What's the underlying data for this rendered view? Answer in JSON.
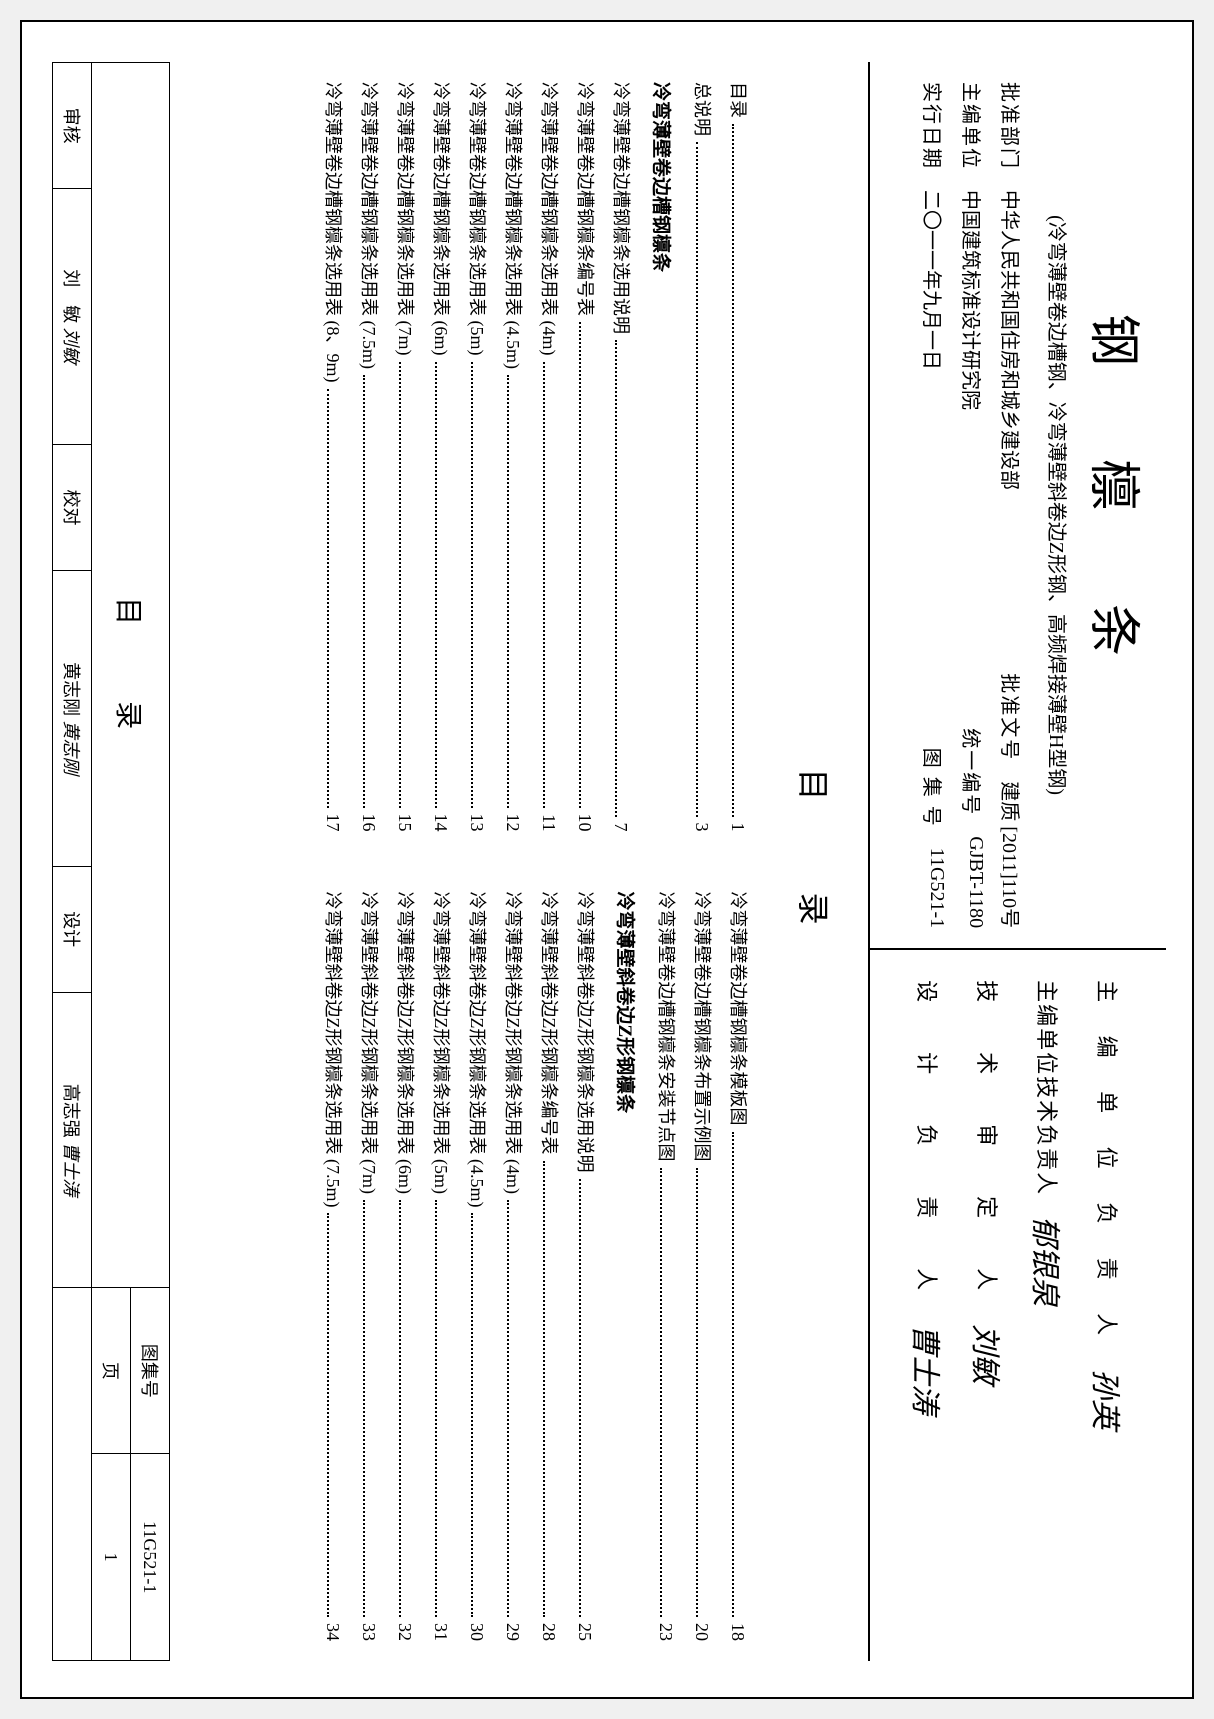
{
  "title_block": {
    "main_title": "钢  檩  条",
    "subtitle": "(冷弯薄壁卷边槽钢、冷弯薄壁斜卷边Z形钢、高频焊接薄壁H型钢)",
    "lines": [
      {
        "label": "批准部门",
        "value1": "中华人民共和国住房和城乡建设部",
        "label2": "批准文号",
        "value2": "建质 [2011]110号"
      },
      {
        "label": "主编单位",
        "value1": "中国建筑标准设计研究院",
        "label2": "统一编号",
        "value2": "GJBT-1180"
      },
      {
        "label": "实行日期",
        "value1": "二〇一一年九月一日",
        "label2": "图 集 号",
        "value2": "11G521-1"
      }
    ]
  },
  "signatures": [
    {
      "label": "主 编 单 位 负 责 人",
      "label_class": "sig-label",
      "name": "孙英"
    },
    {
      "label": "主编单位技术负责人",
      "label_class": "sig-label-tight",
      "name": "郁银泉"
    },
    {
      "label": "技　术　审　定　人",
      "label_class": "sig-label",
      "name": "刘敏"
    },
    {
      "label": "设　计　负　责　人",
      "label_class": "sig-label",
      "name": "曹士涛"
    }
  ],
  "toc": {
    "title": "目　录",
    "left": [
      {
        "text": "目录",
        "page": "1",
        "type": "entry"
      },
      {
        "text": "总说明",
        "page": "3",
        "type": "entry"
      },
      {
        "text": "冷弯薄壁卷边槽钢檩条",
        "type": "section"
      },
      {
        "text": "冷弯薄壁卷边槽钢檩条选用说明",
        "page": "7",
        "type": "entry"
      },
      {
        "text": "冷弯薄壁卷边槽钢檩条编号表",
        "page": "10",
        "type": "entry"
      },
      {
        "text": "冷弯薄壁卷边槽钢檩条选用表 (4m)",
        "page": "11",
        "type": "entry"
      },
      {
        "text": "冷弯薄壁卷边槽钢檩条选用表 (4.5m)",
        "page": "12",
        "type": "entry"
      },
      {
        "text": "冷弯薄壁卷边槽钢檩条选用表 (5m)",
        "page": "13",
        "type": "entry"
      },
      {
        "text": "冷弯薄壁卷边槽钢檩条选用表 (6m)",
        "page": "14",
        "type": "entry"
      },
      {
        "text": "冷弯薄壁卷边槽钢檩条选用表 (7m)",
        "page": "15",
        "type": "entry"
      },
      {
        "text": "冷弯薄壁卷边槽钢檩条选用表 (7.5m)",
        "page": "16",
        "type": "entry"
      },
      {
        "text": "冷弯薄壁卷边槽钢檩条选用表 (8、9m)",
        "page": "17",
        "type": "entry"
      }
    ],
    "right": [
      {
        "text": "冷弯薄壁卷边槽钢檩条模板图",
        "page": "18",
        "type": "entry"
      },
      {
        "text": "冷弯薄壁卷边槽钢檩条布置示例图",
        "page": "20",
        "type": "entry"
      },
      {
        "text": "冷弯薄壁卷边槽钢檩条安装节点图",
        "page": "23",
        "type": "entry"
      },
      {
        "text": "冷弯薄壁斜卷边Z形钢檩条",
        "type": "section"
      },
      {
        "text": "冷弯薄壁斜卷边Z形钢檩条选用说明",
        "page": "25",
        "type": "entry"
      },
      {
        "text": "冷弯薄壁斜卷边Z形钢檩条编号表",
        "page": "28",
        "type": "entry"
      },
      {
        "text": "冷弯薄壁斜卷边Z形钢檩条选用表 (4m)",
        "page": "29",
        "type": "entry"
      },
      {
        "text": "冷弯薄壁斜卷边Z形钢檩条选用表 (4.5m)",
        "page": "30",
        "type": "entry"
      },
      {
        "text": "冷弯薄壁斜卷边Z形钢檩条选用表 (5m)",
        "page": "31",
        "type": "entry"
      },
      {
        "text": "冷弯薄壁斜卷边Z形钢檩条选用表 (6m)",
        "page": "32",
        "type": "entry"
      },
      {
        "text": "冷弯薄壁斜卷边Z形钢檩条选用表 (7m)",
        "page": "33",
        "type": "entry"
      },
      {
        "text": "冷弯薄壁斜卷边Z形钢檩条选用表 (7.5m)",
        "page": "34",
        "type": "entry"
      }
    ]
  },
  "footer": {
    "title": "目　录",
    "album_label": "图集号",
    "album_value": "11G521-1",
    "page_label": "页",
    "page_value": "1",
    "roles": [
      {
        "role": "审核",
        "name": "刘　敏",
        "sig": "刘敏"
      },
      {
        "role": "校对",
        "name": "黄志刚",
        "sig": "黄志刚"
      },
      {
        "role": "设计",
        "name": "高志强",
        "sig": "曹士涛"
      }
    ]
  }
}
